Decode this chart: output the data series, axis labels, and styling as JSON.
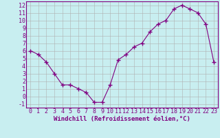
{
  "x": [
    0,
    1,
    2,
    3,
    4,
    5,
    6,
    7,
    8,
    9,
    10,
    11,
    12,
    13,
    14,
    15,
    16,
    17,
    18,
    19,
    20,
    21,
    22,
    23
  ],
  "y": [
    6.0,
    5.5,
    4.5,
    3.0,
    1.5,
    1.5,
    1.0,
    0.5,
    -0.8,
    -0.8,
    1.5,
    4.8,
    5.5,
    6.5,
    7.0,
    8.5,
    9.5,
    10.0,
    11.5,
    12.0,
    11.5,
    11.0,
    9.5,
    4.5
  ],
  "xlabel": "Windchill (Refroidissement éolien,°C)",
  "ylim": [
    -1.5,
    12.5
  ],
  "xlim": [
    -0.5,
    23.5
  ],
  "line_color": "#800080",
  "marker": "+",
  "marker_size": 4,
  "bg_color": "#c8eef0",
  "grid_color": "#b0b0b0",
  "label_fontsize": 6.5,
  "tick_fontsize": 6,
  "yticks": [
    -1,
    0,
    1,
    2,
    3,
    4,
    5,
    6,
    7,
    8,
    9,
    10,
    11,
    12
  ],
  "xticks": [
    0,
    1,
    2,
    3,
    4,
    5,
    6,
    7,
    8,
    9,
    10,
    11,
    12,
    13,
    14,
    15,
    16,
    17,
    18,
    19,
    20,
    21,
    22,
    23
  ]
}
